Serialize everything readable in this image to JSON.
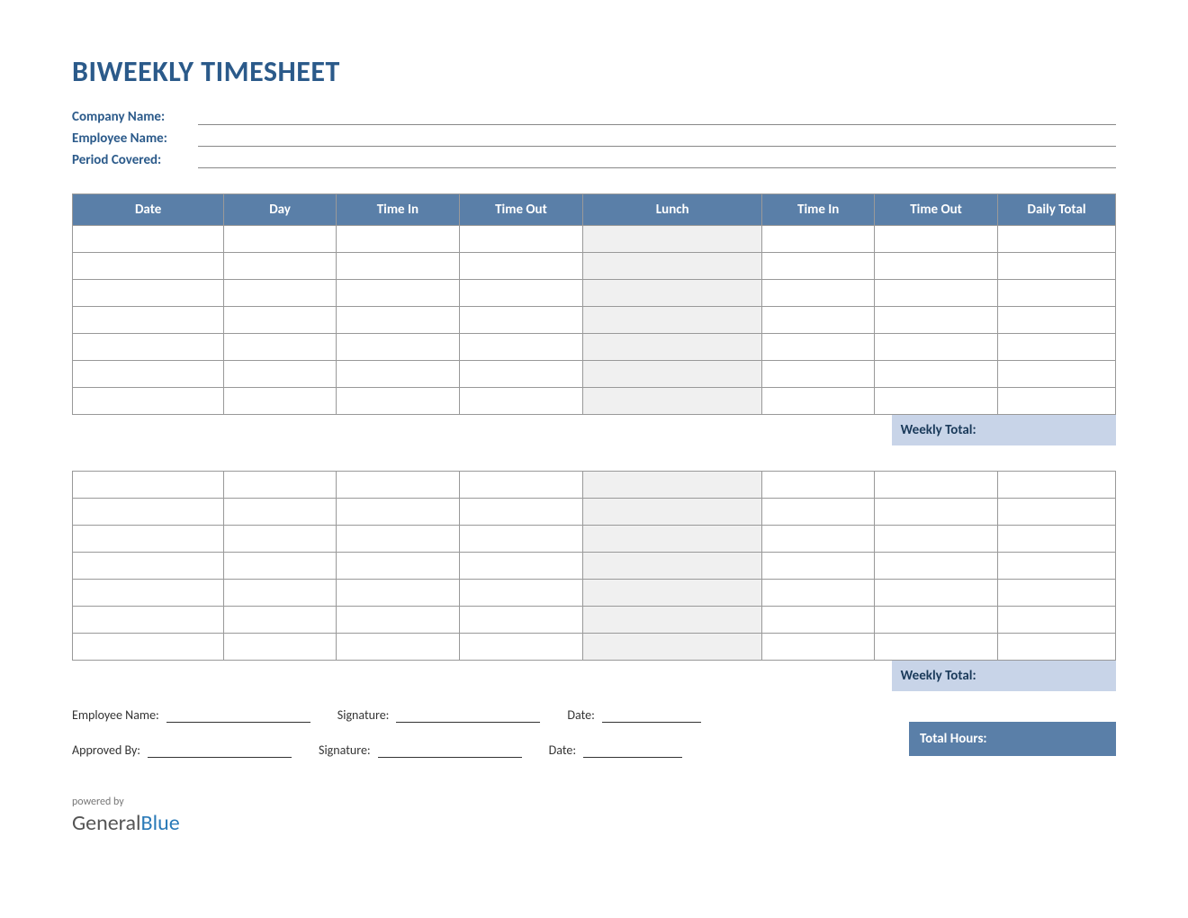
{
  "title": "BIWEEKLY TIMESHEET",
  "info": {
    "company_label": "Company Name:",
    "employee_label": "Employee Name:",
    "period_label": "Period Covered:"
  },
  "columns": {
    "date": "Date",
    "day": "Day",
    "time_in_1": "Time In",
    "time_out_1": "Time Out",
    "lunch": "Lunch",
    "time_in_2": "Time In",
    "time_out_2": "Time Out",
    "daily_total": "Daily Total"
  },
  "week1": {
    "row_count": 7,
    "weekly_total_label": "Weekly Total:"
  },
  "week2": {
    "row_count": 7,
    "weekly_total_label": "Weekly Total:"
  },
  "signatures": {
    "employee_name_label": "Employee Name:",
    "approved_by_label": "Approved By:",
    "signature_label": "Signature:",
    "date_label": "Date:"
  },
  "total_hours_label": "Total Hours:",
  "footer": {
    "powered_by": "powered by",
    "logo_general": "General",
    "logo_blue": "Blue"
  },
  "style": {
    "header_bg": "#5a7fa8",
    "header_fg": "#ffffff",
    "title_color": "#2b5a8a",
    "weekly_total_bg": "#c8d4e8",
    "lunch_bg": "#f0f0f0",
    "border_color": "#999999"
  }
}
